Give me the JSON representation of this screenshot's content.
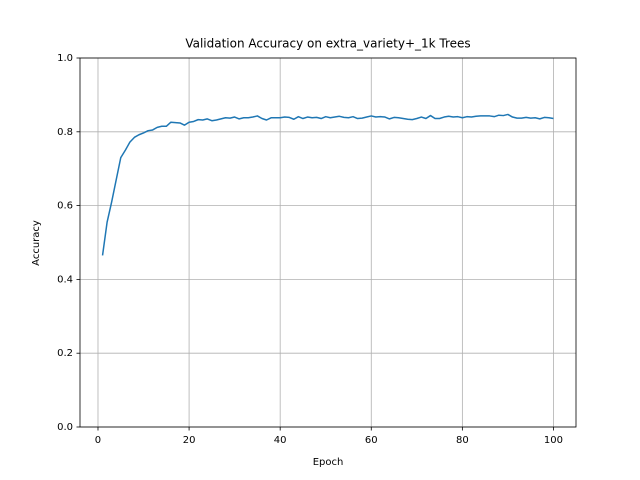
{
  "chart_data": {
    "type": "line",
    "title": "Validation Accuracy on extra_variety+_1k Trees",
    "xlabel": "Epoch",
    "ylabel": "Accuracy",
    "x": [
      1,
      2,
      3,
      4,
      5,
      6,
      7,
      8,
      9,
      10,
      11,
      12,
      13,
      14,
      15,
      16,
      17,
      18,
      19,
      20,
      21,
      22,
      23,
      24,
      25,
      26,
      27,
      28,
      29,
      30,
      31,
      32,
      33,
      34,
      35,
      36,
      37,
      38,
      39,
      40,
      41,
      42,
      43,
      44,
      45,
      46,
      47,
      48,
      49,
      50,
      51,
      52,
      53,
      54,
      55,
      56,
      57,
      58,
      59,
      60,
      61,
      62,
      63,
      64,
      65,
      66,
      67,
      68,
      69,
      70,
      71,
      72,
      73,
      74,
      75,
      76,
      77,
      78,
      79,
      80,
      81,
      82,
      83,
      84,
      85,
      86,
      87,
      88,
      89,
      90,
      91,
      92,
      93,
      94,
      95,
      96,
      97,
      98,
      99,
      100
    ],
    "series": [
      {
        "color": "#1f77b4",
        "values": [
          0.465,
          0.555,
          0.61,
          0.67,
          0.73,
          0.75,
          0.772,
          0.785,
          0.792,
          0.797,
          0.803,
          0.805,
          0.812,
          0.815,
          0.815,
          0.826,
          0.825,
          0.824,
          0.818,
          0.826,
          0.828,
          0.833,
          0.832,
          0.835,
          0.83,
          0.832,
          0.835,
          0.838,
          0.837,
          0.84,
          0.835,
          0.838,
          0.838,
          0.84,
          0.843,
          0.836,
          0.832,
          0.838,
          0.838,
          0.838,
          0.84,
          0.839,
          0.834,
          0.841,
          0.836,
          0.84,
          0.838,
          0.839,
          0.836,
          0.841,
          0.838,
          0.84,
          0.842,
          0.839,
          0.838,
          0.841,
          0.836,
          0.837,
          0.84,
          0.843,
          0.84,
          0.841,
          0.84,
          0.835,
          0.839,
          0.838,
          0.836,
          0.834,
          0.833,
          0.836,
          0.84,
          0.836,
          0.844,
          0.836,
          0.836,
          0.84,
          0.842,
          0.84,
          0.841,
          0.838,
          0.841,
          0.84,
          0.842,
          0.843,
          0.843,
          0.843,
          0.841,
          0.845,
          0.844,
          0.847,
          0.84,
          0.837,
          0.837,
          0.839,
          0.837,
          0.838,
          0.835,
          0.839,
          0.838,
          0.836
        ]
      }
    ],
    "xlim": [
      -3.95,
      104.95
    ],
    "ylim": [
      0,
      1
    ],
    "xticks": [
      0,
      20,
      40,
      60,
      80,
      100
    ],
    "yticks": [
      {
        "value": 0,
        "label": "0.0"
      },
      0.2,
      0.4,
      0.6,
      0.8,
      {
        "value": 1,
        "label": "1.0"
      }
    ],
    "grid": true
  }
}
